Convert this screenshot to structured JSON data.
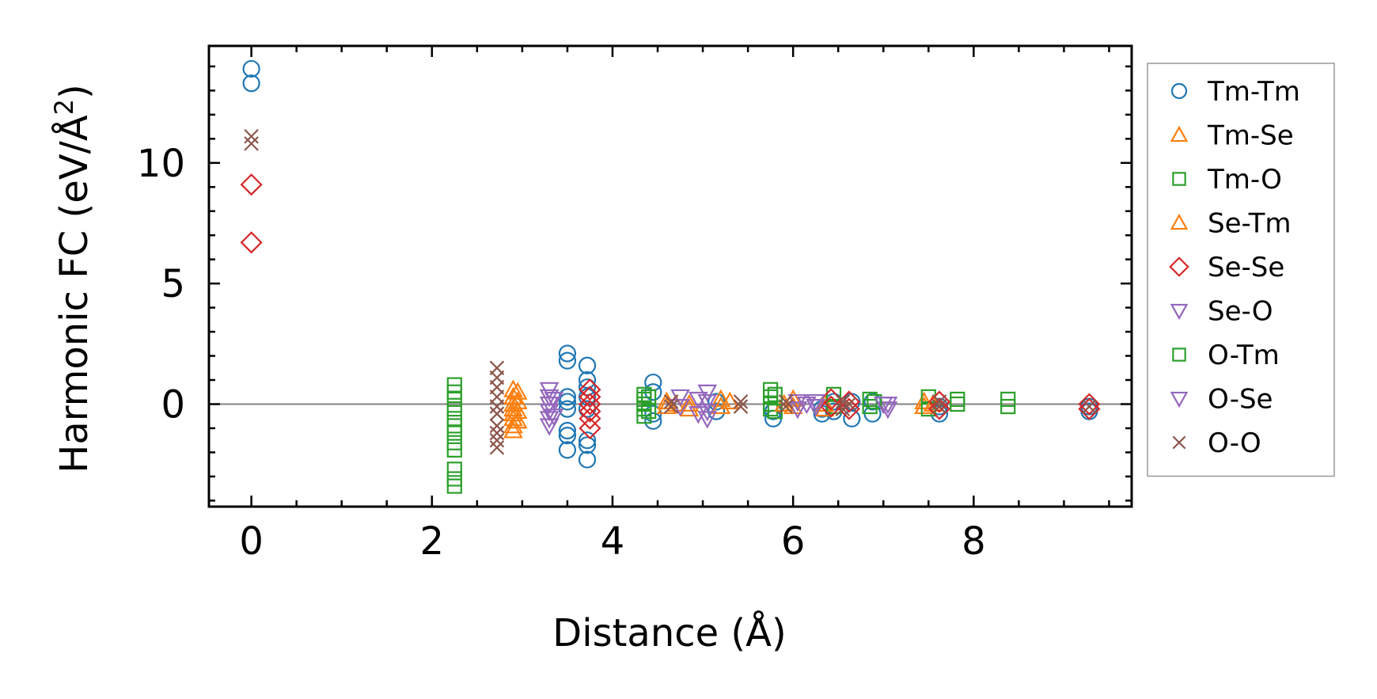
{
  "chart_data": {
    "type": "scatter",
    "title": "",
    "xlabel": "Distance (Å)",
    "ylabel_main": "Harmonic FC (eV/Å",
    "ylabel_sup": "2",
    "ylabel_close": ")",
    "xlim": [
      -0.47,
      9.75
    ],
    "ylim": [
      -4.25,
      14.85
    ],
    "xticks": [
      0,
      2,
      4,
      6,
      8
    ],
    "xtick_labels": [
      "0",
      "2",
      "4",
      "6",
      "8"
    ],
    "yticks": [
      0,
      5,
      10
    ],
    "ytick_labels": [
      "0",
      "5",
      "10"
    ],
    "xminor_step": 0.5,
    "yminor_step": 1,
    "reference_line_y": 0,
    "legend_position": "outside-right",
    "series": [
      {
        "name": "Tm-Tm",
        "marker": "circle",
        "color": "#1f77b4",
        "points": [
          [
            0,
            13.9
          ],
          [
            0,
            13.3
          ],
          [
            3.5,
            2.1
          ],
          [
            3.5,
            1.8
          ],
          [
            3.5,
            0.3
          ],
          [
            3.5,
            0.1
          ],
          [
            3.5,
            -0.2
          ],
          [
            3.5,
            -1.1
          ],
          [
            3.5,
            -1.3
          ],
          [
            3.5,
            -1.9
          ],
          [
            3.72,
            1.6
          ],
          [
            3.72,
            1.0
          ],
          [
            3.72,
            0.7
          ],
          [
            3.72,
            0.3
          ],
          [
            3.72,
            -0.2
          ],
          [
            3.72,
            -1.5
          ],
          [
            3.72,
            -1.7
          ],
          [
            3.72,
            -2.3
          ],
          [
            4.45,
            0.9
          ],
          [
            4.45,
            0.5
          ],
          [
            4.45,
            -0.4
          ],
          [
            4.45,
            -0.7
          ],
          [
            5.15,
            0.1
          ],
          [
            5.15,
            -0.3
          ],
          [
            5.78,
            -0.3
          ],
          [
            5.78,
            -0.6
          ],
          [
            6.32,
            -0.2
          ],
          [
            6.32,
            -0.4
          ],
          [
            6.45,
            0.1
          ],
          [
            6.45,
            -0.3
          ],
          [
            6.65,
            0.1
          ],
          [
            6.65,
            -0.6
          ],
          [
            6.88,
            0.1
          ],
          [
            6.88,
            -0.4
          ],
          [
            7.62,
            -0.1
          ],
          [
            7.62,
            -0.4
          ],
          [
            9.28,
            -0.1
          ],
          [
            9.28,
            -0.3
          ]
        ]
      },
      {
        "name": "Tm-Se",
        "marker": "triangle-up",
        "color": "#ff7f0e",
        "points": [
          [
            2.9,
            0.6
          ],
          [
            2.9,
            0.3
          ],
          [
            2.9,
            0.0
          ],
          [
            2.9,
            -0.2
          ],
          [
            2.9,
            -0.4
          ],
          [
            2.9,
            -0.6
          ],
          [
            2.9,
            -0.9
          ],
          [
            2.9,
            -1.1
          ],
          [
            4.6,
            0.1
          ],
          [
            4.6,
            -0.1
          ],
          [
            4.85,
            0.0
          ],
          [
            4.85,
            -0.2
          ],
          [
            5.2,
            0.2
          ],
          [
            5.2,
            -0.1
          ],
          [
            6.0,
            0.2
          ],
          [
            6.0,
            -0.1
          ],
          [
            6.35,
            0.0
          ],
          [
            6.35,
            -0.2
          ],
          [
            7.45,
            0.1
          ],
          [
            7.45,
            -0.1
          ]
        ]
      },
      {
        "name": "Tm-O",
        "marker": "square",
        "color": "#2ca02c",
        "points": [
          [
            2.25,
            0.8
          ],
          [
            2.25,
            0.5
          ],
          [
            2.25,
            0.2
          ],
          [
            2.25,
            -0.2
          ],
          [
            2.25,
            -0.6
          ],
          [
            2.25,
            -0.9
          ],
          [
            2.25,
            -1.2
          ],
          [
            2.25,
            -1.6
          ],
          [
            2.25,
            -1.9
          ],
          [
            2.25,
            -2.7
          ],
          [
            2.25,
            -3.1
          ],
          [
            2.25,
            -3.4
          ],
          [
            4.35,
            0.4
          ],
          [
            4.35,
            0.2
          ],
          [
            4.35,
            0.0
          ],
          [
            4.35,
            -0.2
          ],
          [
            4.35,
            -0.5
          ],
          [
            5.75,
            0.6
          ],
          [
            5.75,
            0.3
          ],
          [
            5.75,
            0.0
          ],
          [
            5.75,
            -0.2
          ],
          [
            6.45,
            0.4
          ],
          [
            6.45,
            -0.1
          ],
          [
            6.85,
            0.2
          ],
          [
            6.85,
            -0.1
          ],
          [
            7.5,
            0.3
          ],
          [
            7.5,
            -0.2
          ],
          [
            7.82,
            0.2
          ],
          [
            7.82,
            0.0
          ],
          [
            8.38,
            0.2
          ],
          [
            8.38,
            -0.1
          ]
        ]
      },
      {
        "name": "Se-Tm",
        "marker": "triangle-up",
        "color": "#ff7f0e",
        "points": [
          [
            2.95,
            0.5
          ],
          [
            2.95,
            0.1
          ],
          [
            2.95,
            -0.3
          ],
          [
            2.95,
            -0.7
          ],
          [
            4.7,
            0.0
          ],
          [
            5.3,
            0.1
          ],
          [
            5.9,
            0.0
          ],
          [
            7.55,
            0.0
          ]
        ]
      },
      {
        "name": "Se-Se",
        "marker": "diamond",
        "color": "#d62728",
        "points": [
          [
            0,
            9.1
          ],
          [
            0,
            6.7
          ],
          [
            3.75,
            0.6
          ],
          [
            3.75,
            0.3
          ],
          [
            3.75,
            0.0
          ],
          [
            3.75,
            -0.3
          ],
          [
            3.75,
            -0.6
          ],
          [
            3.75,
            -1.0
          ],
          [
            6.42,
            0.2
          ],
          [
            6.42,
            -0.1
          ],
          [
            6.62,
            0.1
          ],
          [
            6.62,
            -0.2
          ],
          [
            7.62,
            0.1
          ],
          [
            7.62,
            -0.2
          ],
          [
            9.28,
            0.0
          ],
          [
            9.28,
            -0.2
          ]
        ]
      },
      {
        "name": "Se-O",
        "marker": "triangle-down",
        "color": "#9467bd",
        "points": [
          [
            3.3,
            0.6
          ],
          [
            3.3,
            0.3
          ],
          [
            3.3,
            0.0
          ],
          [
            3.3,
            -0.3
          ],
          [
            3.3,
            -0.6
          ],
          [
            3.3,
            -0.9
          ],
          [
            4.75,
            0.3
          ],
          [
            4.75,
            -0.1
          ],
          [
            5.05,
            0.5
          ],
          [
            5.05,
            0.1
          ],
          [
            5.05,
            -0.3
          ],
          [
            5.05,
            -0.6
          ],
          [
            6.05,
            0.1
          ],
          [
            6.05,
            -0.2
          ],
          [
            6.25,
            0.1
          ],
          [
            6.25,
            -0.1
          ],
          [
            7.05,
            0.0
          ],
          [
            7.05,
            -0.2
          ]
        ]
      },
      {
        "name": "O-Tm",
        "marker": "square",
        "color": "#2ca02c",
        "points": [
          [
            4.4,
            0.3
          ],
          [
            4.4,
            -0.3
          ],
          [
            5.8,
            0.4
          ],
          [
            5.8,
            -0.3
          ],
          [
            6.9,
            0.1
          ]
        ]
      },
      {
        "name": "O-Se",
        "marker": "triangle-down",
        "color": "#9467bd",
        "points": [
          [
            3.35,
            0.2
          ],
          [
            3.35,
            -0.5
          ],
          [
            4.95,
            0.2
          ],
          [
            4.95,
            -0.4
          ],
          [
            6.15,
            0.0
          ],
          [
            7.0,
            0.0
          ]
        ]
      },
      {
        "name": "O-O",
        "marker": "x",
        "color": "#8c564b",
        "points": [
          [
            0,
            11.1
          ],
          [
            0,
            10.8
          ],
          [
            2.72,
            1.5
          ],
          [
            2.72,
            1.1
          ],
          [
            2.72,
            0.7
          ],
          [
            2.72,
            0.3
          ],
          [
            2.72,
            -0.1
          ],
          [
            2.72,
            -0.4
          ],
          [
            2.72,
            -0.9
          ],
          [
            2.72,
            -1.2
          ],
          [
            2.72,
            -1.5
          ],
          [
            2.72,
            -1.8
          ],
          [
            4.65,
            0.1
          ],
          [
            4.65,
            -0.1
          ],
          [
            5.42,
            0.1
          ],
          [
            5.42,
            -0.1
          ],
          [
            5.92,
            0.1
          ],
          [
            5.92,
            -0.1
          ],
          [
            6.55,
            0.1
          ],
          [
            6.55,
            -0.2
          ],
          [
            6.62,
            0.0
          ],
          [
            7.62,
            0.1
          ],
          [
            7.62,
            -0.1
          ],
          [
            9.28,
            -0.1
          ]
        ]
      }
    ]
  }
}
